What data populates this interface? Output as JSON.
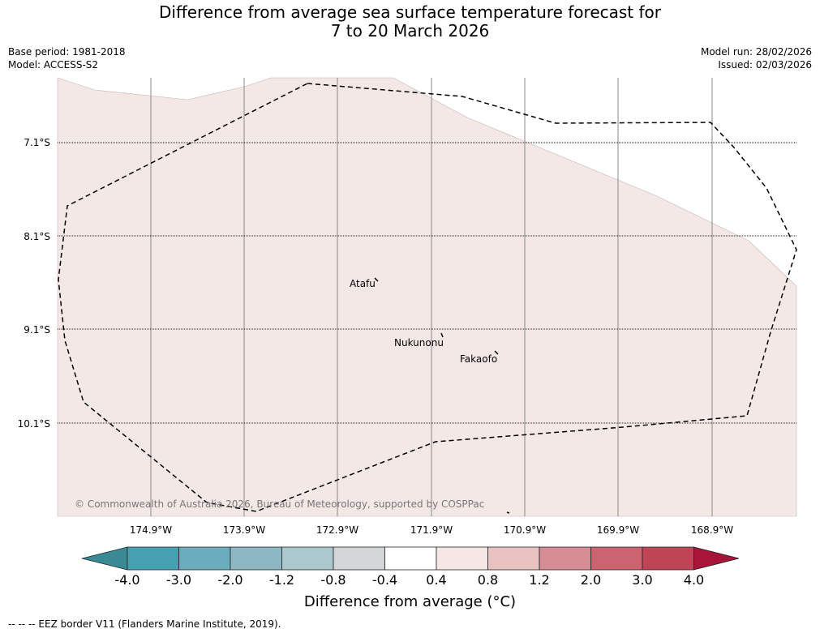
{
  "title_line1": "Difference from average sea surface temperature forecast for",
  "title_line2": "7 to 20 March 2026",
  "base_period": "Base period: 1981-2018",
  "model": "Model: ACCESS-S2",
  "model_run": "Model run: 28/02/2026",
  "issued": "Issued: 02/03/2026",
  "map": {
    "lon_labels": [
      "174.9°W",
      "173.9°W",
      "172.9°W",
      "171.9°W",
      "170.9°W",
      "169.9°W",
      "168.9°W"
    ],
    "lat_labels": [
      "7.1°S",
      "8.1°S",
      "9.1°S",
      "10.1°S"
    ],
    "places": [
      "Atafu",
      "Nukunonu",
      "Fakaofo"
    ],
    "copyright": "© Commonwealth of Australia 2026, Bureau of Meteorology, supported by COSPPac",
    "field_color": "#f4e8e7"
  },
  "colorbar": {
    "labels": [
      "-4.0",
      "-3.0",
      "-2.0",
      "-1.2",
      "-0.8",
      "-0.4",
      "0.4",
      "0.8",
      "1.2",
      "2.0",
      "3.0",
      "4.0"
    ],
    "colors": [
      "#3a8a95",
      "#45a0b2",
      "#6aadbc",
      "#8db8c3",
      "#abc8cc",
      "#d3d6d7",
      "#ffffff",
      "#f6e6e5",
      "#e8c3c1",
      "#d78d94",
      "#cb6370",
      "#bf4455",
      "#a7163a"
    ],
    "title": "Difference from average (°C)"
  },
  "footnote": "--  --  -- EEZ border V11 (Flanders Marine Institute, 2019)."
}
